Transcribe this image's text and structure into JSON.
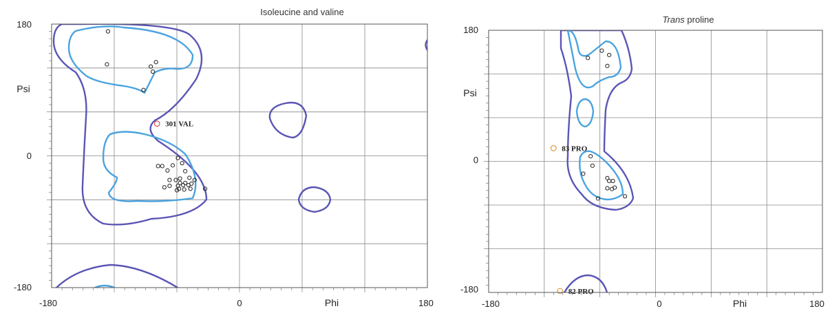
{
  "chart_data": [
    {
      "type": "scatter",
      "title": "Isoleucine and valine",
      "title_style": "normal",
      "xlabel": "Phi",
      "ylabel": "Psi",
      "xlim": [
        -180,
        180
      ],
      "ylim": [
        -180,
        180
      ],
      "x_ticks": [
        "-180",
        "0",
        "180"
      ],
      "y_ticks": [
        "180",
        "0",
        "-180"
      ],
      "grid": true,
      "colors": {
        "outer_contour": "#5a55b5",
        "inner_contour": "#4aa3df",
        "point": "#222222",
        "highlight": "#e03030"
      },
      "points": [
        [
          -126,
          170
        ],
        [
          -127,
          125
        ],
        [
          -85,
          122
        ],
        [
          -83,
          115
        ],
        [
          -80,
          128
        ],
        [
          -92,
          90
        ],
        [
          -59,
          -3
        ],
        [
          -64,
          -13
        ],
        [
          -74,
          -14
        ],
        [
          -69,
          -20
        ],
        [
          -78,
          -14
        ],
        [
          -55,
          -10
        ],
        [
          -52,
          -21
        ],
        [
          -48,
          -30
        ],
        [
          -57,
          -31
        ],
        [
          -61,
          -33
        ],
        [
          -67,
          -33
        ],
        [
          -72,
          -43
        ],
        [
          -67,
          -41
        ],
        [
          -59,
          -41
        ],
        [
          -54,
          -40
        ],
        [
          -49,
          -40
        ],
        [
          -46,
          -38
        ],
        [
          -43,
          -33
        ],
        [
          -52,
          -37
        ],
        [
          -57,
          -37
        ],
        [
          -60,
          -47
        ],
        [
          -53,
          -46
        ],
        [
          -47,
          -45
        ],
        [
          -33,
          -45
        ],
        [
          -58,
          -45
        ]
      ],
      "highlighted": [
        {
          "label": "301 VAL",
          "phi": -79,
          "psi": 44
        }
      ]
    },
    {
      "type": "scatter",
      "title": "Trans proline",
      "title_italic_word": "Trans",
      "title_rest": " proline",
      "xlabel": "Phi",
      "ylabel": "Psi",
      "xlim": [
        -180,
        180
      ],
      "ylim": [
        -180,
        180
      ],
      "x_ticks": [
        "-180",
        "0",
        "180"
      ],
      "y_ticks": [
        "180",
        "0",
        "-180"
      ],
      "grid": true,
      "colors": {
        "outer_contour": "#5a55b5",
        "inner_contour": "#4aa3df",
        "point": "#222222",
        "highlight": "#d88820"
      },
      "points": [
        [
          -73,
          142
        ],
        [
          -58,
          152
        ],
        [
          -50,
          146
        ],
        [
          -52,
          131
        ],
        [
          -70,
          7
        ],
        [
          -78,
          -17
        ],
        [
          -68,
          -6
        ],
        [
          -52,
          -23
        ],
        [
          -50,
          -27
        ],
        [
          -46,
          -27
        ],
        [
          -52,
          -37
        ],
        [
          -47,
          -38
        ],
        [
          -44,
          -36
        ],
        [
          -62,
          -51
        ],
        [
          -33,
          -48
        ]
      ],
      "highlighted": [
        {
          "label": "83 PRO",
          "phi": -110,
          "psi": 18
        },
        {
          "label": "82 PRO",
          "phi": -103,
          "psi": -178
        }
      ]
    }
  ]
}
